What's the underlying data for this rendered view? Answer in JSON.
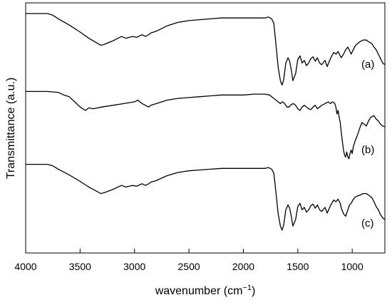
{
  "chart_data": {
    "type": "line",
    "xlabel": "wavenumber (cm",
    "xlabel_sup": "−1",
    "xlabel_close": ")",
    "ylabel": "Transmittance (a.u.)",
    "xlim": [
      4000,
      700
    ],
    "x_reversed": true,
    "ylim": [
      0,
      1
    ],
    "x_ticks": [
      4000,
      3500,
      3000,
      2500,
      2000,
      1500,
      1000
    ],
    "y_ticks_shown": false,
    "grid": false,
    "series": [
      {
        "name": "(a)",
        "x": [
          4000,
          3800,
          3750,
          3700,
          3600,
          3500,
          3420,
          3350,
          3310,
          3280,
          3200,
          3120,
          3080,
          3020,
          2980,
          2930,
          2900,
          2870,
          2850,
          2800,
          2700,
          2600,
          2500,
          2400,
          2300,
          2200,
          2100,
          2000,
          1900,
          1800,
          1770,
          1740,
          1720,
          1700,
          1680,
          1660,
          1645,
          1630,
          1610,
          1590,
          1575,
          1560,
          1545,
          1520,
          1500,
          1480,
          1460,
          1440,
          1420,
          1400,
          1380,
          1360,
          1340,
          1320,
          1300,
          1280,
          1250,
          1230,
          1200,
          1170,
          1150,
          1130,
          1110,
          1100,
          1080,
          1060,
          1040,
          1025,
          1010,
          990,
          970,
          950,
          930,
          900,
          870,
          850,
          820,
          800,
          780,
          760,
          740,
          720,
          700
        ],
        "y": [
          0.96,
          0.96,
          0.94,
          0.9,
          0.83,
          0.75,
          0.68,
          0.63,
          0.6,
          0.61,
          0.65,
          0.7,
          0.68,
          0.7,
          0.69,
          0.72,
          0.7,
          0.72,
          0.74,
          0.76,
          0.82,
          0.86,
          0.88,
          0.89,
          0.9,
          0.91,
          0.91,
          0.91,
          0.91,
          0.91,
          0.92,
          0.9,
          0.85,
          0.6,
          0.35,
          0.2,
          0.15,
          0.21,
          0.4,
          0.46,
          0.42,
          0.32,
          0.2,
          0.28,
          0.44,
          0.48,
          0.4,
          0.43,
          0.37,
          0.4,
          0.45,
          0.47,
          0.42,
          0.46,
          0.4,
          0.38,
          0.43,
          0.36,
          0.45,
          0.52,
          0.5,
          0.53,
          0.48,
          0.46,
          0.5,
          0.55,
          0.58,
          0.54,
          0.5,
          0.55,
          0.6,
          0.62,
          0.64,
          0.66,
          0.66,
          0.64,
          0.62,
          0.58,
          0.55,
          0.5,
          0.45,
          0.4,
          0.38
        ]
      },
      {
        "name": "(b)",
        "x": [
          4000,
          3800,
          3700,
          3650,
          3600,
          3550,
          3500,
          3450,
          3420,
          3380,
          3300,
          3200,
          3100,
          3000,
          2970,
          2930,
          2900,
          2870,
          2850,
          2800,
          2700,
          2600,
          2500,
          2400,
          2300,
          2200,
          2100,
          2000,
          1900,
          1800,
          1760,
          1720,
          1700,
          1660,
          1640,
          1620,
          1600,
          1580,
          1560,
          1540,
          1520,
          1500,
          1480,
          1460,
          1440,
          1420,
          1400,
          1380,
          1360,
          1340,
          1320,
          1300,
          1280,
          1250,
          1220,
          1200,
          1180,
          1160,
          1150,
          1140,
          1130,
          1120,
          1110,
          1100,
          1090,
          1080,
          1070,
          1060,
          1050,
          1040,
          1030,
          1020,
          1010,
          1000,
          990,
          970,
          950,
          930,
          910,
          890,
          870,
          850,
          830,
          800,
          780,
          760,
          740,
          720,
          700
        ],
        "y": [
          0.98,
          0.98,
          0.97,
          0.94,
          0.92,
          0.86,
          0.8,
          0.76,
          0.79,
          0.78,
          0.8,
          0.82,
          0.84,
          0.86,
          0.88,
          0.84,
          0.82,
          0.8,
          0.82,
          0.84,
          0.88,
          0.9,
          0.91,
          0.92,
          0.93,
          0.94,
          0.94,
          0.94,
          0.95,
          0.95,
          0.94,
          0.9,
          0.88,
          0.84,
          0.86,
          0.84,
          0.8,
          0.8,
          0.83,
          0.84,
          0.82,
          0.78,
          0.76,
          0.8,
          0.82,
          0.8,
          0.78,
          0.77,
          0.8,
          0.82,
          0.78,
          0.8,
          0.82,
          0.84,
          0.86,
          0.84,
          0.86,
          0.84,
          0.8,
          0.72,
          0.76,
          0.68,
          0.62,
          0.5,
          0.4,
          0.3,
          0.24,
          0.22,
          0.28,
          0.22,
          0.2,
          0.26,
          0.3,
          0.26,
          0.34,
          0.42,
          0.48,
          0.56,
          0.62,
          0.6,
          0.58,
          0.64,
          0.68,
          0.7,
          0.66,
          0.64,
          0.6,
          0.58,
          0.57
        ]
      },
      {
        "name": "(c)",
        "x": [
          4000,
          3800,
          3750,
          3700,
          3600,
          3500,
          3420,
          3350,
          3310,
          3280,
          3200,
          3120,
          3080,
          3020,
          2980,
          2930,
          2900,
          2870,
          2850,
          2800,
          2700,
          2600,
          2500,
          2400,
          2300,
          2200,
          2100,
          2000,
          1900,
          1800,
          1770,
          1740,
          1720,
          1700,
          1680,
          1660,
          1645,
          1630,
          1610,
          1590,
          1575,
          1560,
          1545,
          1520,
          1500,
          1480,
          1460,
          1440,
          1420,
          1400,
          1380,
          1360,
          1340,
          1320,
          1300,
          1280,
          1250,
          1230,
          1200,
          1170,
          1150,
          1130,
          1110,
          1100,
          1080,
          1060,
          1040,
          1025,
          1010,
          990,
          970,
          950,
          930,
          900,
          870,
          850,
          820,
          800,
          780,
          760,
          740,
          720,
          700
        ],
        "y": [
          0.96,
          0.96,
          0.94,
          0.9,
          0.83,
          0.75,
          0.68,
          0.63,
          0.6,
          0.61,
          0.65,
          0.7,
          0.68,
          0.7,
          0.69,
          0.72,
          0.7,
          0.72,
          0.74,
          0.76,
          0.82,
          0.86,
          0.88,
          0.89,
          0.9,
          0.91,
          0.91,
          0.91,
          0.91,
          0.91,
          0.92,
          0.9,
          0.85,
          0.6,
          0.35,
          0.2,
          0.15,
          0.21,
          0.4,
          0.46,
          0.42,
          0.32,
          0.2,
          0.28,
          0.44,
          0.48,
          0.4,
          0.43,
          0.37,
          0.4,
          0.45,
          0.47,
          0.42,
          0.46,
          0.4,
          0.38,
          0.43,
          0.36,
          0.45,
          0.52,
          0.5,
          0.53,
          0.48,
          0.42,
          0.35,
          0.32,
          0.4,
          0.46,
          0.48,
          0.53,
          0.56,
          0.57,
          0.58,
          0.6,
          0.6,
          0.58,
          0.55,
          0.5,
          0.44,
          0.4,
          0.34,
          0.3,
          0.28
        ]
      }
    ]
  }
}
